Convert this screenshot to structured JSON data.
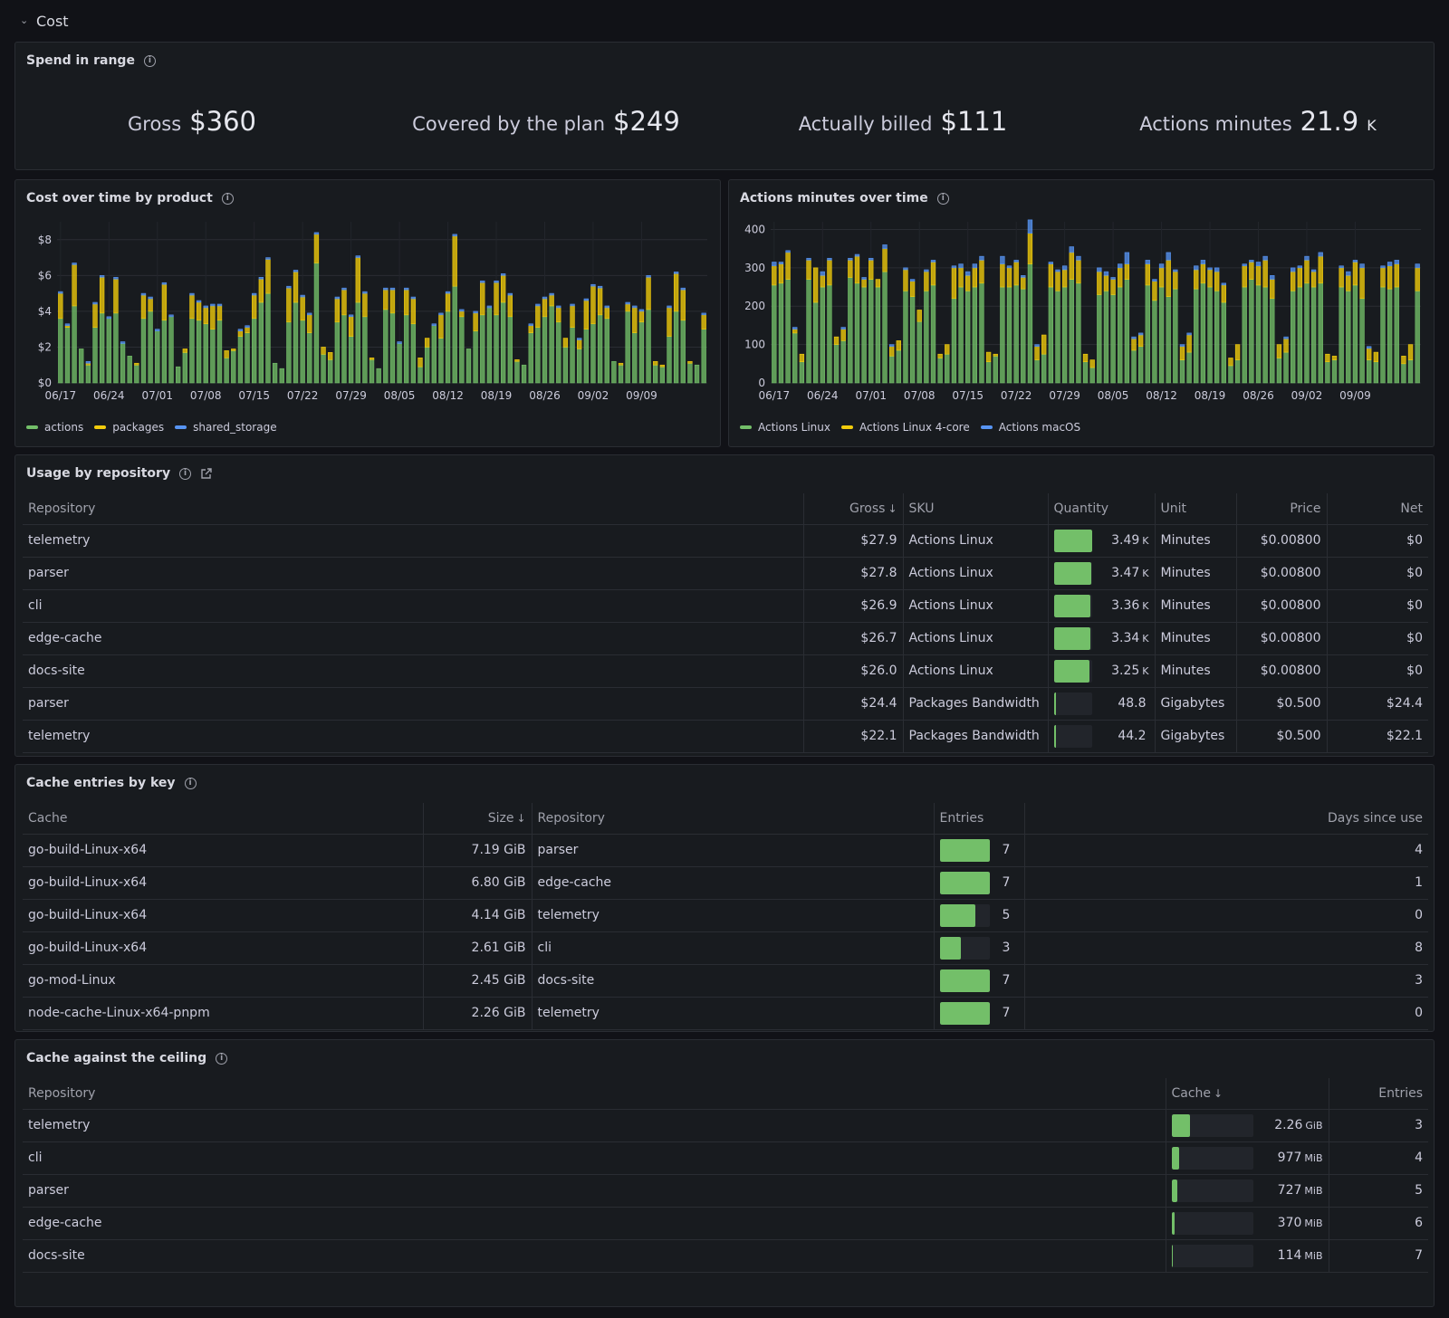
{
  "row": {
    "title": "Cost"
  },
  "spend": {
    "title": "Spend in range",
    "stats": [
      {
        "label": "Gross",
        "value": "$360",
        "unit": ""
      },
      {
        "label": "Covered by the plan",
        "value": "$249",
        "unit": ""
      },
      {
        "label": "Actually billed",
        "value": "$111",
        "unit": ""
      },
      {
        "label": "Actions minutes",
        "value": "21.9",
        "unit": "K"
      }
    ]
  },
  "colors": {
    "green": "#73bf69",
    "yellow": "#f2cc0c",
    "blue": "#5794f2"
  },
  "chart_data": [
    {
      "type": "bar",
      "title": "Cost over time by product",
      "stacked": true,
      "y_ticks": [
        "$0",
        "$2",
        "$4",
        "$6",
        "$8"
      ],
      "ylim": [
        0,
        9
      ],
      "x_ticks": [
        "06/17",
        "06/24",
        "07/01",
        "07/08",
        "07/15",
        "07/22",
        "07/29",
        "08/05",
        "08/12",
        "08/19",
        "08/26",
        "09/02",
        "09/09"
      ],
      "start_date": "06/17",
      "legend_placement": "bottom-left",
      "series": [
        {
          "name": "actions",
          "color": "#73bf69",
          "values": [
            3.6,
            3.1,
            4.3,
            1.9,
            1.0,
            3.1,
            3.9,
            3.6,
            3.9,
            2.2,
            1.5,
            1.0,
            3.6,
            4.0,
            2.9,
            3.5,
            3.7,
            0.9,
            1.7,
            3.6,
            3.5,
            3.3,
            3.0,
            3.5,
            1.4,
            1.8,
            2.6,
            2.8,
            3.6,
            4.5,
            5.0,
            1.1,
            0.8,
            3.4,
            4.5,
            3.5,
            2.8,
            6.7,
            1.6,
            1.3,
            3.4,
            3.8,
            2.6,
            4.5,
            3.7,
            1.3,
            0.8,
            4.1,
            3.9,
            2.2,
            3.8,
            3.3,
            0.9,
            2.0,
            3.2,
            2.5,
            4.0,
            5.4,
            3.7,
            1.9,
            2.9,
            3.8,
            4.2,
            3.8,
            4.5,
            3.7,
            1.2,
            1.0,
            2.8,
            3.1,
            3.7,
            4.3,
            3.4,
            2.0,
            3.1,
            1.9,
            3.0,
            3.3,
            3.8,
            3.6,
            1.2,
            1.0,
            4.0,
            2.8,
            3.4,
            4.1,
            1.0,
            0.9,
            2.6,
            4.0,
            3.5,
            1.1,
            1.0,
            3.0
          ]
        },
        {
          "name": "packages",
          "color": "#f2cc0c",
          "values": [
            1.4,
            0.1,
            2.3,
            0.0,
            0.1,
            1.3,
            2.0,
            0.0,
            1.9,
            0.0,
            0.0,
            0.1,
            1.3,
            0.7,
            0.0,
            2.0,
            0.0,
            0.0,
            0.2,
            1.3,
            1.0,
            0.9,
            1.3,
            0.8,
            0.4,
            0.1,
            0.3,
            0.3,
            1.3,
            1.3,
            1.9,
            0.0,
            0.0,
            1.9,
            1.7,
            1.3,
            1.0,
            1.6,
            0.4,
            0.4,
            1.3,
            1.4,
            1.1,
            2.5,
            1.3,
            0.1,
            0.0,
            1.1,
            1.3,
            0.0,
            1.4,
            1.4,
            0.5,
            0.5,
            0.0,
            1.3,
            1.0,
            2.8,
            0.3,
            0.0,
            1.0,
            1.8,
            0.0,
            1.8,
            1.5,
            1.2,
            0.1,
            0.0,
            0.4,
            1.2,
            1.0,
            0.6,
            0.8,
            0.5,
            1.2,
            0.5,
            1.6,
            2.1,
            1.5,
            0.6,
            0.0,
            0.1,
            0.4,
            1.4,
            0.6,
            1.8,
            0.2,
            0.1,
            1.6,
            2.1,
            1.7,
            0.1,
            0.0,
            0.8
          ]
        },
        {
          "name": "shared_storage",
          "color": "#5794f2",
          "values": [
            0.1,
            0.1,
            0.1,
            0.0,
            0.1,
            0.1,
            0.1,
            0.1,
            0.1,
            0.1,
            0.0,
            0.0,
            0.1,
            0.1,
            0.1,
            0.1,
            0.1,
            0.0,
            0.0,
            0.1,
            0.1,
            0.1,
            0.1,
            0.1,
            0.0,
            0.0,
            0.1,
            0.1,
            0.1,
            0.1,
            0.1,
            0.0,
            0.0,
            0.1,
            0.1,
            0.1,
            0.1,
            0.1,
            0.0,
            0.0,
            0.1,
            0.1,
            0.1,
            0.1,
            0.1,
            0.0,
            0.0,
            0.1,
            0.1,
            0.1,
            0.1,
            0.1,
            0.0,
            0.0,
            0.1,
            0.1,
            0.1,
            0.1,
            0.1,
            0.0,
            0.1,
            0.1,
            0.1,
            0.1,
            0.1,
            0.1,
            0.0,
            0.0,
            0.1,
            0.1,
            0.1,
            0.1,
            0.1,
            0.0,
            0.1,
            0.1,
            0.1,
            0.1,
            0.1,
            0.1,
            0.0,
            0.0,
            0.1,
            0.1,
            0.1,
            0.1,
            0.0,
            0.0,
            0.1,
            0.1,
            0.1,
            0.0,
            0.0,
            0.1
          ]
        }
      ]
    },
    {
      "type": "bar",
      "title": "Actions minutes over time",
      "stacked": true,
      "y_ticks": [
        "0",
        "100",
        "200",
        "300",
        "400"
      ],
      "ylim": [
        0,
        420
      ],
      "x_ticks": [
        "06/17",
        "06/24",
        "07/01",
        "07/08",
        "07/15",
        "07/22",
        "07/29",
        "08/05",
        "08/12",
        "08/19",
        "08/26",
        "09/02",
        "09/09"
      ],
      "start_date": "06/17",
      "legend_placement": "bottom-left",
      "series": [
        {
          "name": "Actions Linux",
          "color": "#73bf69",
          "values": [
            255,
            260,
            270,
            130,
            55,
            270,
            210,
            250,
            255,
            100,
            110,
            275,
            260,
            250,
            270,
            250,
            290,
            70,
            85,
            240,
            225,
            160,
            240,
            255,
            65,
            75,
            220,
            250,
            240,
            250,
            260,
            55,
            70,
            250,
            250,
            255,
            245,
            310,
            60,
            75,
            250,
            240,
            250,
            270,
            260,
            55,
            40,
            230,
            240,
            230,
            250,
            270,
            85,
            95,
            255,
            215,
            250,
            225,
            245,
            60,
            80,
            245,
            260,
            250,
            240,
            210,
            45,
            60,
            250,
            270,
            255,
            250,
            220,
            65,
            80,
            240,
            250,
            260,
            250,
            260,
            55,
            60,
            250,
            240,
            255,
            220,
            60,
            55,
            250,
            245,
            250,
            50,
            60,
            240
          ]
        },
        {
          "name": "Actions Linux 4-core",
          "color": "#f2cc0c",
          "values": [
            50,
            50,
            70,
            10,
            20,
            50,
            90,
            30,
            65,
            20,
            30,
            45,
            70,
            20,
            50,
            20,
            60,
            25,
            25,
            55,
            40,
            30,
            50,
            60,
            10,
            25,
            80,
            50,
            40,
            50,
            60,
            25,
            5,
            60,
            50,
            60,
            30,
            80,
            35,
            50,
            60,
            50,
            45,
            70,
            60,
            20,
            20,
            60,
            40,
            40,
            50,
            40,
            30,
            30,
            55,
            50,
            50,
            95,
            45,
            35,
            45,
            50,
            50,
            45,
            50,
            45,
            20,
            40,
            55,
            45,
            50,
            70,
            50,
            35,
            35,
            50,
            50,
            60,
            40,
            70,
            20,
            10,
            50,
            40,
            60,
            80,
            30,
            25,
            50,
            60,
            60,
            20,
            40,
            60
          ]
        },
        {
          "name": "Actions macOS",
          "color": "#5794f2",
          "values": [
            10,
            5,
            5,
            5,
            0,
            5,
            0,
            10,
            5,
            0,
            5,
            5,
            5,
            5,
            5,
            0,
            10,
            5,
            0,
            5,
            5,
            0,
            5,
            5,
            0,
            0,
            5,
            10,
            10,
            10,
            10,
            0,
            0,
            20,
            5,
            5,
            5,
            35,
            5,
            0,
            5,
            5,
            10,
            15,
            10,
            0,
            0,
            10,
            10,
            5,
            10,
            30,
            5,
            5,
            10,
            5,
            10,
            20,
            5,
            5,
            5,
            10,
            10,
            5,
            10,
            5,
            0,
            0,
            5,
            5,
            10,
            10,
            10,
            0,
            5,
            10,
            5,
            10,
            5,
            10,
            0,
            0,
            5,
            10,
            5,
            10,
            5,
            0,
            5,
            10,
            10,
            0,
            0,
            10
          ]
        }
      ]
    }
  ],
  "usage": {
    "title": "Usage by repository",
    "columns": {
      "repository": "Repository",
      "gross": "Gross",
      "sku": "SKU",
      "quantity": "Quantity",
      "unit": "Unit",
      "price": "Price",
      "net": "Net"
    },
    "rows": [
      {
        "repository": "telemetry",
        "gross": "$27.9",
        "sku": "Actions Linux",
        "qty": "3.49",
        "qty_unit": "K",
        "qty_fraction": 1.0,
        "unit": "Minutes",
        "price": "$0.00800",
        "net": "$0"
      },
      {
        "repository": "parser",
        "gross": "$27.8",
        "sku": "Actions Linux",
        "qty": "3.47",
        "qty_unit": "K",
        "qty_fraction": 0.99,
        "unit": "Minutes",
        "price": "$0.00800",
        "net": "$0"
      },
      {
        "repository": "cli",
        "gross": "$26.9",
        "sku": "Actions Linux",
        "qty": "3.36",
        "qty_unit": "K",
        "qty_fraction": 0.96,
        "unit": "Minutes",
        "price": "$0.00800",
        "net": "$0"
      },
      {
        "repository": "edge-cache",
        "gross": "$26.7",
        "sku": "Actions Linux",
        "qty": "3.34",
        "qty_unit": "K",
        "qty_fraction": 0.96,
        "unit": "Minutes",
        "price": "$0.00800",
        "net": "$0"
      },
      {
        "repository": "docs-site",
        "gross": "$26.0",
        "sku": "Actions Linux",
        "qty": "3.25",
        "qty_unit": "K",
        "qty_fraction": 0.93,
        "unit": "Minutes",
        "price": "$0.00800",
        "net": "$0"
      },
      {
        "repository": "parser",
        "gross": "$24.4",
        "sku": "Packages Bandwidth",
        "qty": "48.8",
        "qty_unit": "",
        "qty_fraction": 0.014,
        "unit": "Gigabytes",
        "price": "$0.500",
        "net": "$24.4"
      },
      {
        "repository": "telemetry",
        "gross": "$22.1",
        "sku": "Packages Bandwidth",
        "qty": "44.2",
        "qty_unit": "",
        "qty_fraction": 0.013,
        "unit": "Gigabytes",
        "price": "$0.500",
        "net": "$22.1"
      }
    ]
  },
  "cache_entries": {
    "title": "Cache entries by key",
    "columns": {
      "cache": "Cache",
      "size": "Size",
      "repository": "Repository",
      "entries": "Entries",
      "days": "Days since use"
    },
    "rows": [
      {
        "cache": "go-build-Linux-x64",
        "size": "7.19 GiB",
        "repository": "parser",
        "entries": "7",
        "entries_fraction": 1.0,
        "days": "4"
      },
      {
        "cache": "go-build-Linux-x64",
        "size": "6.80 GiB",
        "repository": "edge-cache",
        "entries": "7",
        "entries_fraction": 1.0,
        "days": "1"
      },
      {
        "cache": "go-build-Linux-x64",
        "size": "4.14 GiB",
        "repository": "telemetry",
        "entries": "5",
        "entries_fraction": 0.71,
        "days": "0"
      },
      {
        "cache": "go-build-Linux-x64",
        "size": "2.61 GiB",
        "repository": "cli",
        "entries": "3",
        "entries_fraction": 0.43,
        "days": "8"
      },
      {
        "cache": "go-mod-Linux",
        "size": "2.45 GiB",
        "repository": "docs-site",
        "entries": "7",
        "entries_fraction": 1.0,
        "days": "3"
      },
      {
        "cache": "node-cache-Linux-x64-pnpm",
        "size": "2.26 GiB",
        "repository": "telemetry",
        "entries": "7",
        "entries_fraction": 1.0,
        "days": "0"
      }
    ]
  },
  "ceiling": {
    "title": "Cache against the ceiling",
    "columns": {
      "repository": "Repository",
      "cache": "Cache",
      "entries": "Entries"
    },
    "rows": [
      {
        "repository": "telemetry",
        "cache": "2.26",
        "cache_unit": "GiB",
        "cache_fraction": 0.226,
        "entries": "3"
      },
      {
        "repository": "cli",
        "cache": "977",
        "cache_unit": "MiB",
        "cache_fraction": 0.095,
        "entries": "4"
      },
      {
        "repository": "parser",
        "cache": "727",
        "cache_unit": "MiB",
        "cache_fraction": 0.071,
        "entries": "5"
      },
      {
        "repository": "edge-cache",
        "cache": "370",
        "cache_unit": "MiB",
        "cache_fraction": 0.036,
        "entries": "6"
      },
      {
        "repository": "docs-site",
        "cache": "114",
        "cache_unit": "MiB",
        "cache_fraction": 0.011,
        "entries": "7"
      }
    ]
  }
}
